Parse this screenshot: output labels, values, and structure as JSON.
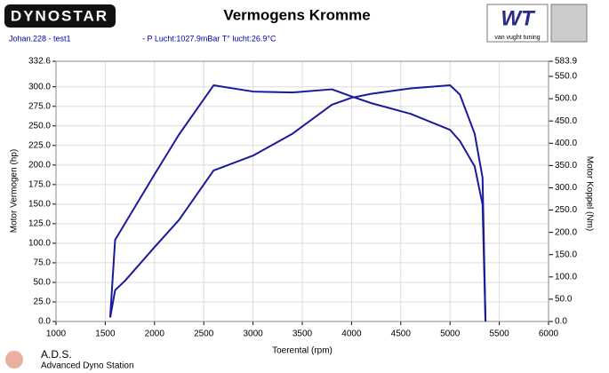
{
  "chart_data": {
    "type": "line",
    "title": "Vermogens Kromme",
    "logo_left": "DYNOSTAR",
    "logo_right": "WT",
    "logo_right_sub": "van vught tuning",
    "run_name": "Johan.228 - test1",
    "conditions": "- P Lucht:1027.9mBar T° lucht:26.9°C",
    "x_label": "Toerental (rpm)",
    "y_label": "Motor Vermogen (hp)",
    "y2_label": "Motor Koppel (Nm)",
    "footer_title": "A.D.S.",
    "footer_sub": "Advanced Dyno Station",
    "grid": true,
    "x": [
      1550,
      1600,
      1700,
      2000,
      2250,
      2600,
      3000,
      3400,
      3800,
      4000,
      4200,
      4600,
      5000,
      5100,
      5250,
      5330,
      5360
    ],
    "series": [
      {
        "color": "#1a1a9c",
        "axis": "y",
        "values": [
          5,
          40,
          52,
          95,
          130,
          193,
          212,
          240,
          277,
          286,
          291,
          298,
          302,
          290,
          240,
          184,
          0
        ]
      },
      {
        "color": "#1a1a9c",
        "axis": "y2",
        "values": [
          10,
          183,
          220,
          330,
          420,
          530,
          516,
          514,
          521,
          505,
          490,
          466,
          430,
          405,
          348,
          263,
          0
        ]
      }
    ],
    "xlim": [
      1000,
      6000
    ],
    "xticks": [
      1000,
      1500,
      2000,
      2500,
      3000,
      3500,
      4000,
      4500,
      5000,
      5500,
      6000
    ],
    "ylim": [
      0,
      332.6
    ],
    "yticks": [
      {
        "value": 0,
        "label": "0.0"
      },
      {
        "value": 25,
        "label": "25.0"
      },
      {
        "value": 50,
        "label": "50.0"
      },
      {
        "value": 75,
        "label": "75.0"
      },
      {
        "value": 100,
        "label": "100.0"
      },
      {
        "value": 125,
        "label": "125.0"
      },
      {
        "value": 150,
        "label": "150.0"
      },
      {
        "value": 175,
        "label": "175.0"
      },
      {
        "value": 200,
        "label": "200.0"
      },
      {
        "value": 225,
        "label": "225.0"
      },
      {
        "value": 250,
        "label": "250.0"
      },
      {
        "value": 275,
        "label": "275.0"
      },
      {
        "value": 300,
        "label": "300.0"
      },
      332.6
    ],
    "y2lim": [
      0,
      583.9
    ],
    "y2ticks": [
      {
        "value": 0,
        "label": "0.0"
      },
      {
        "value": 50,
        "label": "50.0"
      },
      {
        "value": 100,
        "label": "100.0"
      },
      {
        "value": 150,
        "label": "150.0"
      },
      {
        "value": 200,
        "label": "200.0"
      },
      {
        "value": 250,
        "label": "250.0"
      },
      {
        "value": 300,
        "label": "300.0"
      },
      {
        "value": 350,
        "label": "350.0"
      },
      {
        "value": 400,
        "label": "400.0"
      },
      {
        "value": 450,
        "label": "450.0"
      },
      {
        "value": 500,
        "label": "500.0"
      },
      {
        "value": 550,
        "label": "550.0"
      },
      583.9
    ]
  }
}
